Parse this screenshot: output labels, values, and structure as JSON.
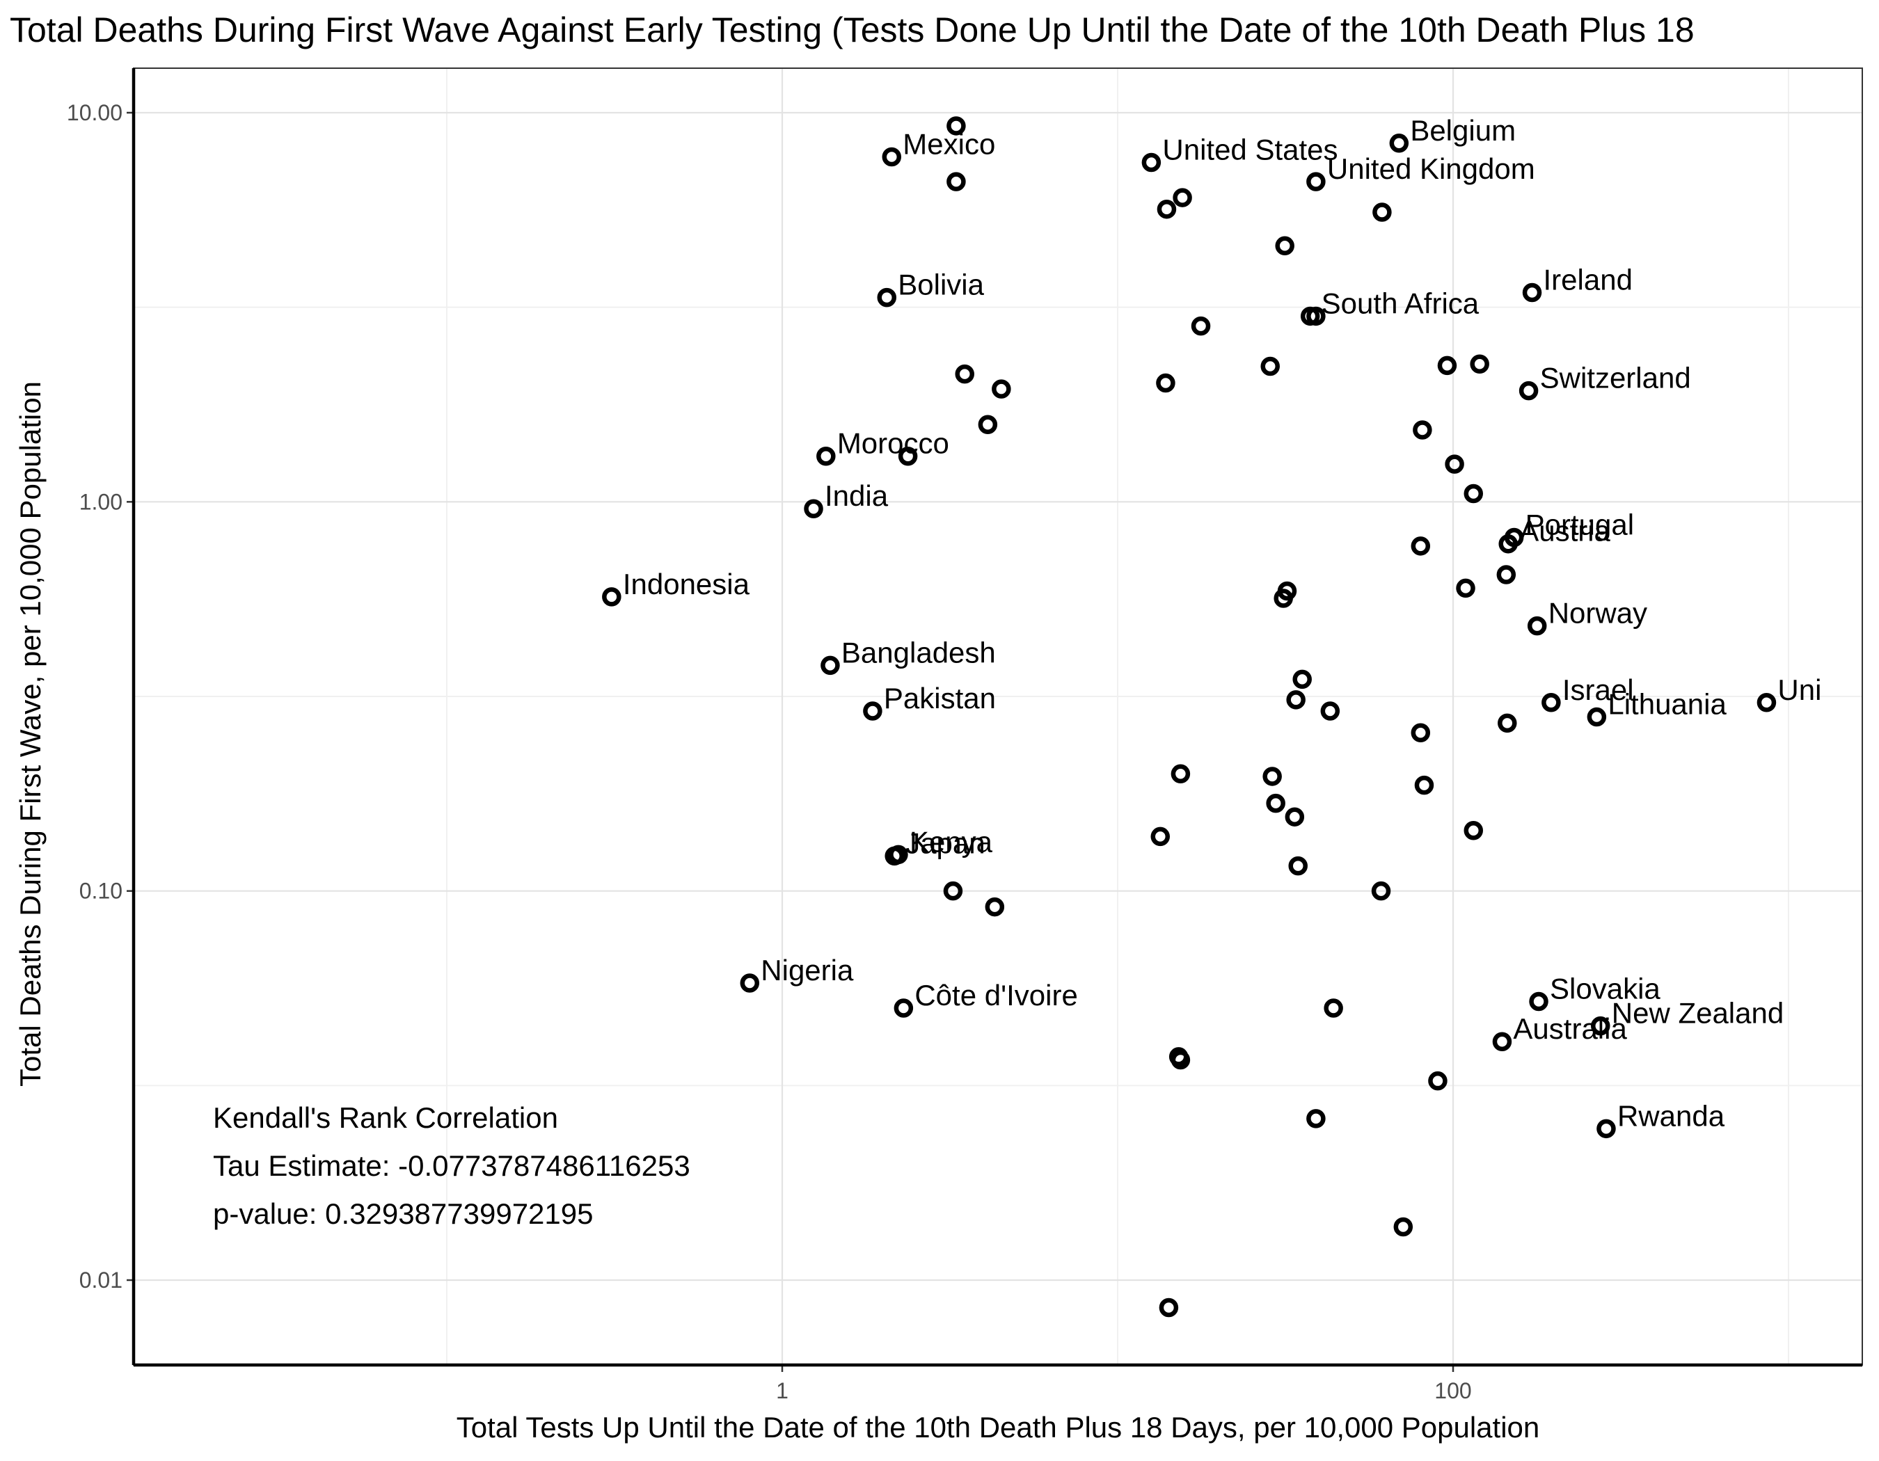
{
  "chart_data": {
    "type": "scatter",
    "title": "Total Deaths During First Wave Against  Early Testing (Tests Done Up Until the Date of the 10th Death Plus 18",
    "xlabel": "Total Tests Up Until the Date of the 10th Death Plus 18 Days, per 10,000 Population",
    "ylabel": "Total Deaths During First Wave, per 10,000 Population",
    "x_scale": "log10",
    "y_scale": "log10",
    "xlim": [
      0.02,
      1000
    ],
    "ylim": [
      0.0052,
      12.5
    ],
    "grid": true,
    "x_ticks": [
      {
        "value": 1,
        "label": "1"
      },
      {
        "value": 100,
        "label": "100"
      }
    ],
    "y_ticks": [
      {
        "value": 0.01,
        "label": "0.01"
      },
      {
        "value": 0.1,
        "label": "0.10"
      },
      {
        "value": 1,
        "label": "1.00"
      },
      {
        "value": 10,
        "label": "10.00"
      }
    ],
    "points": [
      {
        "x": 3.3,
        "y": 9.25
      },
      {
        "x": 2.12,
        "y": 7.7,
        "label": "Mexico"
      },
      {
        "x": 12.6,
        "y": 7.45,
        "label": "United States"
      },
      {
        "x": 69,
        "y": 8.35,
        "label": "Belgium"
      },
      {
        "x": 3.3,
        "y": 6.65
      },
      {
        "x": 39,
        "y": 6.65,
        "label": "United Kingdom"
      },
      {
        "x": 15.6,
        "y": 6.05
      },
      {
        "x": 14.0,
        "y": 5.65
      },
      {
        "x": 61.4,
        "y": 5.55
      },
      {
        "x": 31.5,
        "y": 4.55
      },
      {
        "x": 2.05,
        "y": 3.35,
        "label": "Bolivia"
      },
      {
        "x": 37.5,
        "y": 3.0,
        "label": "South Africa"
      },
      {
        "x": 39,
        "y": 3.0
      },
      {
        "x": 17.7,
        "y": 2.83
      },
      {
        "x": 172,
        "y": 3.45,
        "label": "Ireland"
      },
      {
        "x": 28.5,
        "y": 2.23
      },
      {
        "x": 96,
        "y": 2.24
      },
      {
        "x": 120,
        "y": 2.26
      },
      {
        "x": 168,
        "y": 1.93,
        "label": "Switzerland"
      },
      {
        "x": 3.5,
        "y": 2.13
      },
      {
        "x": 4.5,
        "y": 1.95
      },
      {
        "x": 13.9,
        "y": 2.02
      },
      {
        "x": 4.1,
        "y": 1.58
      },
      {
        "x": 81,
        "y": 1.53
      },
      {
        "x": 1.35,
        "y": 1.31,
        "label": "Morocco"
      },
      {
        "x": 2.37,
        "y": 1.31
      },
      {
        "x": 101,
        "y": 1.25
      },
      {
        "x": 115,
        "y": 1.05
      },
      {
        "x": 1.24,
        "y": 0.96,
        "label": "India"
      },
      {
        "x": 152,
        "y": 0.81,
        "label": "Portugal"
      },
      {
        "x": 146,
        "y": 0.78,
        "label": "Austria"
      },
      {
        "x": 80,
        "y": 0.77
      },
      {
        "x": 0.31,
        "y": 0.57,
        "label": "Indonesia"
      },
      {
        "x": 32,
        "y": 0.59
      },
      {
        "x": 31.2,
        "y": 0.565
      },
      {
        "x": 109,
        "y": 0.6
      },
      {
        "x": 144,
        "y": 0.65
      },
      {
        "x": 178,
        "y": 0.48,
        "label": "Norway"
      },
      {
        "x": 1.39,
        "y": 0.38,
        "label": "Bangladesh"
      },
      {
        "x": 1.86,
        "y": 0.29,
        "label": "Pakistan"
      },
      {
        "x": 35.5,
        "y": 0.35
      },
      {
        "x": 34,
        "y": 0.31
      },
      {
        "x": 43,
        "y": 0.29
      },
      {
        "x": 80,
        "y": 0.255
      },
      {
        "x": 196,
        "y": 0.305,
        "label": "Israel"
      },
      {
        "x": 268,
        "y": 0.28,
        "label": "Lithuania"
      },
      {
        "x": 145,
        "y": 0.27
      },
      {
        "x": 860,
        "y": 0.305,
        "label": "Uni"
      },
      {
        "x": 15.4,
        "y": 0.2
      },
      {
        "x": 28.9,
        "y": 0.197
      },
      {
        "x": 29.6,
        "y": 0.168
      },
      {
        "x": 33.7,
        "y": 0.155
      },
      {
        "x": 82,
        "y": 0.187
      },
      {
        "x": 115,
        "y": 0.143
      },
      {
        "x": 2.16,
        "y": 0.123,
        "label": "Japan"
      },
      {
        "x": 2.22,
        "y": 0.124,
        "label": "Kenya"
      },
      {
        "x": 13.4,
        "y": 0.138
      },
      {
        "x": 34.5,
        "y": 0.116
      },
      {
        "x": 3.23,
        "y": 0.1
      },
      {
        "x": 4.3,
        "y": 0.091
      },
      {
        "x": 61,
        "y": 0.1
      },
      {
        "x": 0.8,
        "y": 0.058,
        "label": "Nigeria"
      },
      {
        "x": 2.3,
        "y": 0.05,
        "label": "Côte d'Ivoire"
      },
      {
        "x": 44,
        "y": 0.05
      },
      {
        "x": 180,
        "y": 0.052,
        "label": "Slovakia"
      },
      {
        "x": 140,
        "y": 0.041,
        "label": "Australia"
      },
      {
        "x": 275,
        "y": 0.045,
        "label": "New Zealand"
      },
      {
        "x": 15.2,
        "y": 0.0375
      },
      {
        "x": 15.4,
        "y": 0.0368
      },
      {
        "x": 90,
        "y": 0.0325
      },
      {
        "x": 39,
        "y": 0.026
      },
      {
        "x": 286,
        "y": 0.0245,
        "label": "Rwanda"
      },
      {
        "x": 71,
        "y": 0.0137
      },
      {
        "x": 14.2,
        "y": 0.0085
      }
    ]
  },
  "stats": {
    "line1": "Kendall's Rank Correlation",
    "line2": "Tau Estimate: -0.0773787486116253",
    "line3": "p-value: 0.329387739972195"
  }
}
